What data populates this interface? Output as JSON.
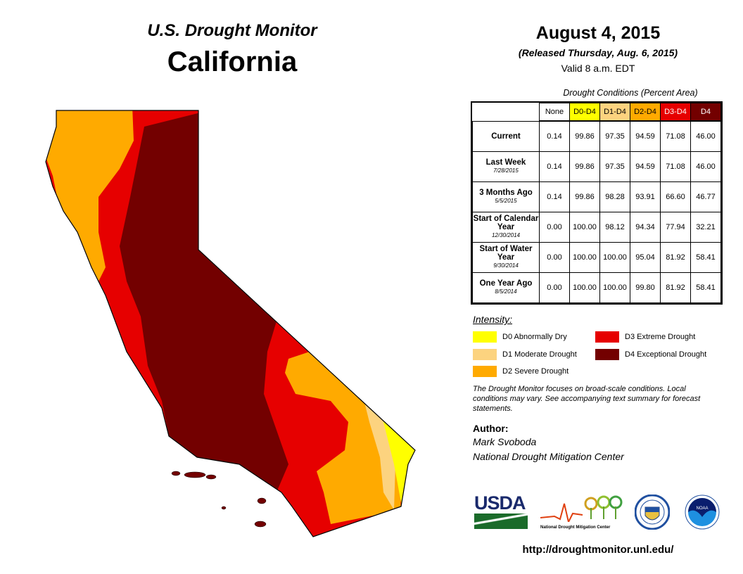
{
  "header": {
    "title": "U.S. Drought Monitor",
    "region": "California",
    "date": "August 4, 2015",
    "released": "(Released Thursday, Aug. 6, 2015)",
    "valid": "Valid 8 a.m. EDT"
  },
  "table": {
    "caption": "Drought Conditions (Percent Area)",
    "columns": [
      {
        "label": "None",
        "color": "#ffffff",
        "text": "#000000"
      },
      {
        "label": "D0-D4",
        "color": "#ffff00",
        "text": "#000000"
      },
      {
        "label": "D1-D4",
        "color": "#fcd37f",
        "text": "#000000"
      },
      {
        "label": "D2-D4",
        "color": "#ffaa00",
        "text": "#000000"
      },
      {
        "label": "D3-D4",
        "color": "#e60000",
        "text": "#ffffff"
      },
      {
        "label": "D4",
        "color": "#730000",
        "text": "#ffffff"
      }
    ],
    "rows": [
      {
        "label": "Current",
        "sub": "",
        "values": [
          "0.14",
          "99.86",
          "97.35",
          "94.59",
          "71.08",
          "46.00"
        ]
      },
      {
        "label": "Last Week",
        "sub": "7/28/2015",
        "values": [
          "0.14",
          "99.86",
          "97.35",
          "94.59",
          "71.08",
          "46.00"
        ]
      },
      {
        "label": "3 Months Ago",
        "sub": "5/5/2015",
        "values": [
          "0.14",
          "99.86",
          "98.28",
          "93.91",
          "66.60",
          "46.77"
        ]
      },
      {
        "label": "Start of Calendar Year",
        "sub": "12/30/2014",
        "values": [
          "0.00",
          "100.00",
          "98.12",
          "94.34",
          "77.94",
          "32.21"
        ]
      },
      {
        "label": "Start of Water Year",
        "sub": "9/30/2014",
        "values": [
          "0.00",
          "100.00",
          "100.00",
          "95.04",
          "81.92",
          "58.41"
        ]
      },
      {
        "label": "One Year Ago",
        "sub": "8/5/2014",
        "values": [
          "0.00",
          "100.00",
          "100.00",
          "99.80",
          "81.92",
          "58.41"
        ]
      }
    ]
  },
  "legend": {
    "title": "Intensity:",
    "items": [
      {
        "label": "D0 Abnormally Dry",
        "color": "#ffff00"
      },
      {
        "label": "D1 Moderate Drought",
        "color": "#fcd37f"
      },
      {
        "label": "D2 Severe Drought",
        "color": "#ffaa00"
      },
      {
        "label": "D3 Extreme Drought",
        "color": "#e60000"
      },
      {
        "label": "D4 Exceptional Drought",
        "color": "#730000"
      }
    ]
  },
  "note": "The Drought Monitor focuses on broad-scale conditions. Local conditions may vary. See accompanying text summary for forecast statements.",
  "author": {
    "label": "Author:",
    "name": "Mark Svoboda",
    "org": "National Drought Mitigation Center"
  },
  "logos": {
    "usda": "USDA",
    "ndmc": "National Drought Mitigation Center",
    "noaa": "NOAA"
  },
  "url": "http://droughtmonitor.unl.edu/"
}
